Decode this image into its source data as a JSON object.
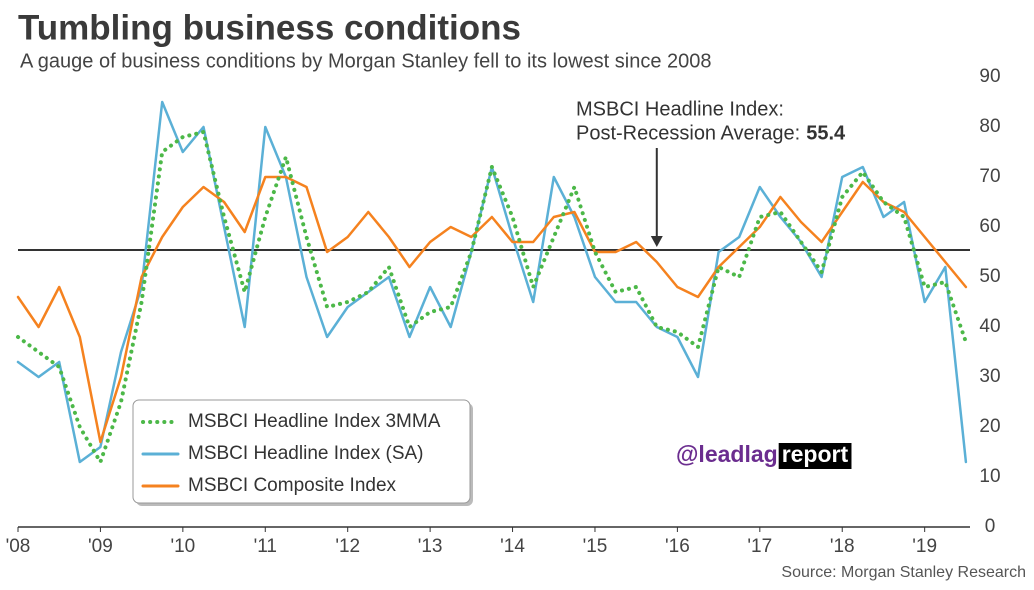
{
  "chart_data": {
    "type": "line",
    "title": "Tumbling business conditions",
    "subtitle": "A gauge of business conditions by Morgan Stanley fell to its lowest since 2008",
    "source": "Source: Morgan Stanley Research",
    "annotation": [
      "MSBCI Headline Index:",
      "Post-Recession Average:"
    ],
    "reference_line": {
      "value": 55.4,
      "color": "#333333"
    },
    "watermark": [
      "@leadlag",
      "report"
    ],
    "x": [
      2008,
      2008.25,
      2008.5,
      2008.75,
      2009,
      2009.25,
      2009.5,
      2009.75,
      2010,
      2010.25,
      2010.5,
      2010.75,
      2011,
      2011.25,
      2011.5,
      2011.75,
      2012,
      2012.25,
      2012.5,
      2012.75,
      2013,
      2013.25,
      2013.5,
      2013.75,
      2014,
      2014.25,
      2014.5,
      2014.75,
      2015,
      2015.25,
      2015.5,
      2015.75,
      2016,
      2016.25,
      2016.5,
      2016.75,
      2017,
      2017.25,
      2017.5,
      2017.75,
      2018,
      2018.25,
      2018.5,
      2018.75,
      2019,
      2019.25,
      2019.5
    ],
    "series": [
      {
        "name": "MSBCI Headline Index 3MMA",
        "color": "#4cb848",
        "line_style": "dotted",
        "values": [
          38,
          35,
          32,
          20,
          13,
          25,
          45,
          75,
          78,
          79,
          62,
          47,
          62,
          74,
          58,
          44,
          45,
          47,
          52,
          40,
          43,
          44,
          55,
          72,
          62,
          48,
          58,
          68,
          55,
          47,
          48,
          40,
          39,
          36,
          52,
          50,
          62,
          63,
          57,
          51,
          66,
          71,
          65,
          62,
          48,
          49,
          37
        ]
      },
      {
        "name": "MSBCI Headline Index (SA)",
        "color": "#5bb0d6",
        "line_style": "solid",
        "values": [
          33,
          30,
          33,
          13,
          16,
          35,
          48,
          85,
          75,
          80,
          60,
          40,
          80,
          70,
          50,
          38,
          44,
          47,
          50,
          38,
          48,
          40,
          55,
          72,
          58,
          45,
          70,
          62,
          50,
          45,
          45,
          40,
          38,
          30,
          55,
          58,
          68,
          62,
          57,
          50,
          70,
          72,
          62,
          65,
          45,
          52,
          13
        ]
      },
      {
        "name": "MSBCI Composite Index",
        "color": "#f5821f",
        "line_style": "solid",
        "values": [
          46,
          40,
          48,
          38,
          17,
          30,
          50,
          58,
          64,
          68,
          65,
          59,
          70,
          70,
          68,
          55,
          58,
          63,
          58,
          52,
          57,
          60,
          58,
          62,
          57,
          57,
          62,
          63,
          55,
          55,
          57,
          53,
          48,
          46,
          52,
          56,
          60,
          66,
          61,
          57,
          63,
          69,
          65,
          63,
          58,
          53,
          48
        ]
      }
    ],
    "xlim": [
      2008,
      2019.55
    ],
    "xticks": [
      {
        "value": 2008,
        "label": "'08"
      },
      {
        "value": 2009,
        "label": "'09"
      },
      {
        "value": 2010,
        "label": "'10"
      },
      {
        "value": 2011,
        "label": "'11"
      },
      {
        "value": 2012,
        "label": "'12"
      },
      {
        "value": 2013,
        "label": "'13"
      },
      {
        "value": 2014,
        "label": "'14"
      },
      {
        "value": 2015,
        "label": "'15"
      },
      {
        "value": 2016,
        "label": "'16"
      },
      {
        "value": 2017,
        "label": "'17"
      },
      {
        "value": 2018,
        "label": "'18"
      },
      {
        "value": 2019,
        "label": "'19"
      }
    ],
    "ylim": [
      0,
      90
    ],
    "yticks": [
      0,
      10,
      20,
      30,
      40,
      50,
      60,
      70,
      80,
      90
    ],
    "grid": false,
    "legend": "lower left"
  }
}
